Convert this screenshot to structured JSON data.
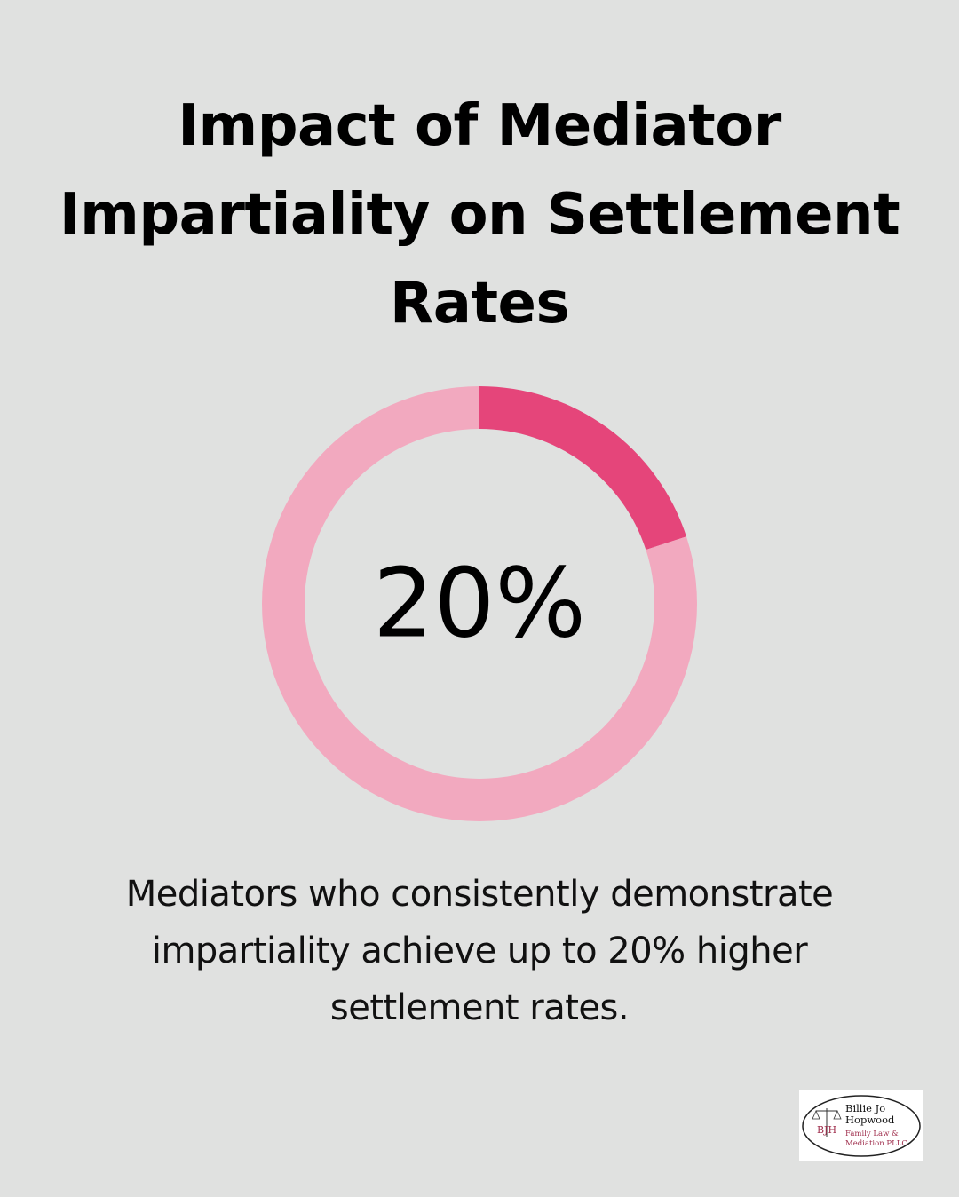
{
  "title": "Impact of Mediator Impartiality on Settlement Rates",
  "description": "Mediators who consistently demonstrate impartiality achieve up to 20% higher settlement rates.",
  "colors": {
    "background": "#e0e1e0",
    "highlight": "#e5457a",
    "remainder": "#f2a9bf",
    "logo_accent": "#a0304e"
  },
  "chart_data": {
    "type": "pie",
    "style": "donut",
    "center_label": "20%",
    "slices": [
      {
        "value": 20,
        "color": "#e5457a"
      },
      {
        "value": 80,
        "color": "#f2a9bf"
      }
    ]
  },
  "logo": {
    "monogram": "BJH",
    "line1": "Billie Jo",
    "line2": "Hopwood",
    "line3": "Family Law &",
    "line4": "Mediation PLLC"
  }
}
